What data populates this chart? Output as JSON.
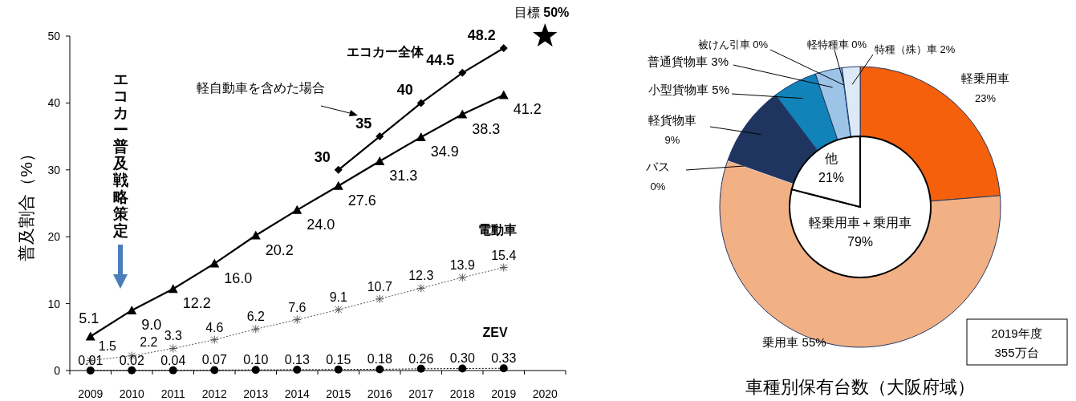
{
  "chart_data": [
    {
      "type": "line",
      "ylabel": "普及割合（%）",
      "categories": [
        "2009",
        "2010",
        "2011",
        "2012",
        "2013",
        "2014",
        "2015",
        "2016",
        "2017",
        "2018",
        "2019",
        "2020"
      ],
      "ylim": [
        0,
        50
      ],
      "yticks": [
        0,
        10,
        20,
        30,
        40,
        50
      ],
      "annotations": [
        "エコカー普及戦略策定",
        "エコカー全体"
      ],
      "series": [
        {
          "color": "#000000",
          "marker": "triangle",
          "line_style": "solid",
          "values": [
            5.1,
            9.0,
            12.2,
            16.0,
            20.2,
            24.0,
            27.6,
            31.3,
            34.9,
            38.3,
            41.2,
            null
          ],
          "value_labels": [
            "5.1",
            "9.0",
            "12.2",
            "16.0",
            "20.2",
            "24.0",
            "27.6",
            "31.3",
            "34.9",
            "38.3",
            "41.2",
            null
          ]
        },
        {
          "name": "軽自動車を含めた場合",
          "color": "#000000",
          "marker": "diamond",
          "line_style": "solid",
          "values": [
            null,
            null,
            null,
            null,
            null,
            null,
            30,
            35,
            40,
            44.5,
            48.2,
            null
          ],
          "value_labels": [
            null,
            null,
            null,
            null,
            null,
            null,
            "30",
            "35",
            "40",
            "44.5",
            "48.2",
            null
          ]
        },
        {
          "name": "電動車",
          "color": "#555555",
          "marker": "cross",
          "line_style": "dotted",
          "values": [
            1.5,
            2.2,
            3.3,
            4.6,
            6.2,
            7.6,
            9.1,
            10.7,
            12.3,
            13.9,
            15.4,
            null
          ],
          "value_labels": [
            "1.5",
            "2.2",
            "3.3",
            "4.6",
            "6.2",
            "7.6",
            "9.1",
            "10.7",
            "12.3",
            "13.9",
            "15.4",
            null
          ]
        },
        {
          "name": "ZEV",
          "color": "#000000",
          "marker": "circle",
          "line_style": "dotted",
          "values": [
            0.01,
            0.02,
            0.04,
            0.07,
            0.1,
            0.13,
            0.15,
            0.18,
            0.26,
            0.3,
            0.33,
            null
          ],
          "value_labels": [
            "0.01",
            "0.02",
            "0.04",
            "0.07",
            "0.10",
            "0.13",
            "0.15",
            "0.18",
            "0.26",
            "0.30",
            "0.33",
            null
          ]
        },
        {
          "name": "目標",
          "type": "scatter",
          "color": "#000000",
          "marker": "star",
          "values": [
            null,
            null,
            null,
            null,
            null,
            null,
            null,
            null,
            null,
            null,
            null,
            50
          ],
          "value_labels": [
            null,
            null,
            null,
            null,
            null,
            null,
            null,
            null,
            null,
            null,
            null,
            "50%"
          ]
        }
      ]
    },
    {
      "type": "donut",
      "title": "車種別保有台数（大阪府域）",
      "categories": [
        "軽乗用車",
        "乗用車",
        "バス",
        "軽貨物車",
        "小型貨物車",
        "普通貨物車",
        "被けん引車",
        "軽特種車",
        "特種（殊）車"
      ],
      "values": [
        23,
        55,
        0,
        9,
        5,
        3,
        0,
        0,
        2
      ],
      "colors": [
        "#f5600c",
        "#f2b085",
        "#ffffff",
        "#1f3560",
        "#1283b8",
        "#9dc3e6",
        "#1f3864",
        "#2e75b6",
        "#dde9f6"
      ],
      "value_labels": [
        "23%",
        "55%",
        "0%",
        "9%",
        "5%",
        "3%",
        "0%",
        "0%",
        "2%"
      ],
      "annotations": [
        "2019年度 355万台"
      ]
    },
    {
      "type": "pie",
      "categories": [
        "軽乗用車＋乗用車",
        "他"
      ],
      "values": [
        79,
        21
      ],
      "colors": [
        "#ffffff",
        "#ffffff"
      ],
      "value_labels": [
        "79%",
        "21%"
      ]
    }
  ]
}
